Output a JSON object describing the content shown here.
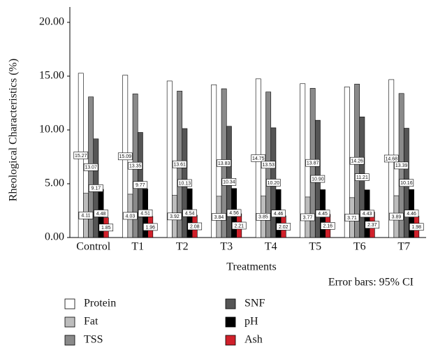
{
  "chart_data": {
    "type": "bar",
    "y_label": "Rheological Characteristics (%)",
    "x_label": "Treatments",
    "note": "Error bars: 95% CI",
    "categories": [
      "Control",
      "T1",
      "T2",
      "T3",
      "T4",
      "T5",
      "T6",
      "T7"
    ],
    "series": [
      {
        "name": "Protein",
        "color": "#ffffff",
        "values": [
          15.27,
          15.09,
          14.55,
          14.2,
          14.75,
          14.3,
          14.0,
          14.68
        ],
        "value_labels": [
          "15.27",
          "15.09",
          null,
          null,
          "14.75",
          null,
          null,
          "14.68"
        ]
      },
      {
        "name": "Fat",
        "color": "#bdbdbd",
        "values": [
          4.11,
          4.03,
          3.92,
          3.84,
          3.85,
          3.77,
          3.71,
          3.89
        ],
        "value_labels": [
          "4.11",
          "4.03",
          "3.92",
          "3.84",
          "3.85",
          "3.77",
          "3.71",
          "3.89"
        ]
      },
      {
        "name": "TSS",
        "color": "#8a8a8a",
        "values": [
          13.07,
          13.35,
          13.61,
          13.83,
          13.53,
          13.87,
          14.26,
          13.39
        ],
        "value_labels": [
          "13.07",
          "13.35",
          "13.61",
          "13.83",
          "13.53",
          "13.87",
          "14.26",
          "13.39"
        ]
      },
      {
        "name": "SNF",
        "color": "#555555",
        "values": [
          9.17,
          9.77,
          10.13,
          10.34,
          10.2,
          10.9,
          11.21,
          10.16
        ],
        "value_labels": [
          "9.17",
          "9.77",
          "10.13",
          "10.34",
          "10.20",
          "10.90",
          "11.21",
          "10.16"
        ]
      },
      {
        "name": "pH",
        "color": "#000000",
        "values": [
          4.48,
          4.51,
          4.54,
          4.56,
          4.46,
          4.45,
          4.43,
          4.46
        ],
        "value_labels": [
          "4.48",
          "4.51",
          "4.54",
          "4.56",
          "4.46",
          "4.45",
          "4.43",
          "4.46"
        ]
      },
      {
        "name": "Ash",
        "color": "#d0202a",
        "values": [
          1.85,
          1.96,
          2.08,
          2.21,
          2.02,
          2.16,
          2.37,
          1.98
        ],
        "value_labels": [
          "1.85",
          "1.96",
          "2.08",
          "2.21",
          "2.02",
          "2.16",
          "2.37",
          "1.98"
        ]
      }
    ],
    "ylim": [
      0,
      20
    ],
    "yticks": [
      {
        "value": 0,
        "label": "0.00"
      },
      {
        "value": 5,
        "label": "5.00"
      },
      {
        "value": 10,
        "label": "10.00"
      },
      {
        "value": 15,
        "label": "15.00"
      },
      {
        "value": 20,
        "label": "20.00"
      }
    ],
    "grid": false
  }
}
